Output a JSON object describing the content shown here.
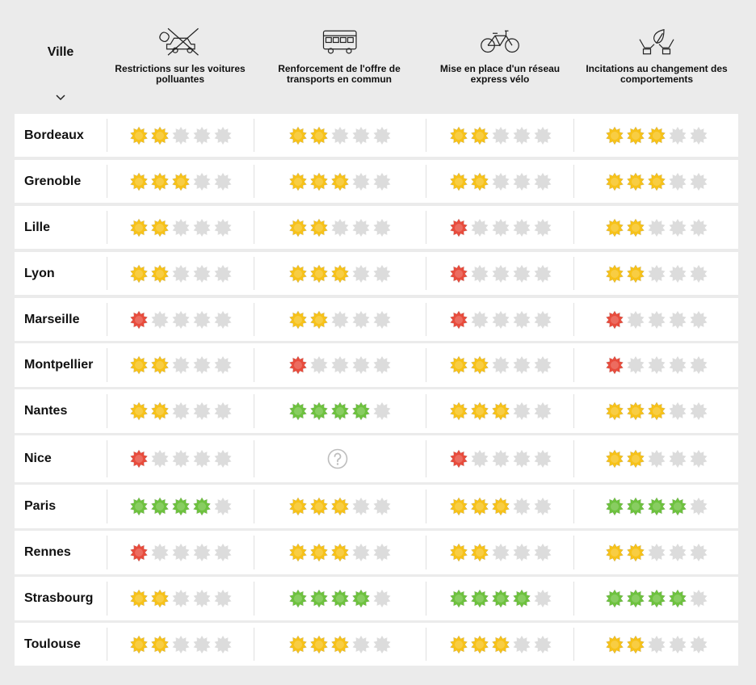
{
  "header": {
    "ville_label": "Ville",
    "sort_icon": "chevron-down-icon",
    "columns": [
      {
        "label": "Restrictions sur les voitures polluantes",
        "icon": "no-polluting-car-icon"
      },
      {
        "label": "Renforcement de l'offre de transports en commun",
        "icon": "bus-icon"
      },
      {
        "label": "Mise en place d'un réseau express vélo",
        "icon": "bicycle-icon"
      },
      {
        "label": "Incitations au changement des comportements",
        "icon": "hands-leaf-icon"
      }
    ]
  },
  "rating_max": 5,
  "level_colors": {
    "1": "#e84c3d",
    "2": "#f7c21a",
    "3": "#f7c21a",
    "4": "#6ec23f",
    "empty": "#dcdcdc"
  },
  "unknown_icon": "question-mark-icon",
  "rows": [
    {
      "city": "Bordeaux",
      "ratings": [
        2,
        2,
        2,
        3
      ]
    },
    {
      "city": "Grenoble",
      "ratings": [
        3,
        3,
        2,
        3
      ]
    },
    {
      "city": "Lille",
      "ratings": [
        2,
        2,
        1,
        2
      ]
    },
    {
      "city": "Lyon",
      "ratings": [
        2,
        3,
        1,
        2
      ]
    },
    {
      "city": "Marseille",
      "ratings": [
        1,
        2,
        1,
        1
      ]
    },
    {
      "city": "Montpellier",
      "ratings": [
        2,
        1,
        2,
        1
      ]
    },
    {
      "city": "Nantes",
      "ratings": [
        2,
        4,
        3,
        3
      ]
    },
    {
      "city": "Nice",
      "ratings": [
        1,
        null,
        1,
        2
      ]
    },
    {
      "city": "Paris",
      "ratings": [
        4,
        3,
        3,
        4
      ]
    },
    {
      "city": "Rennes",
      "ratings": [
        1,
        3,
        2,
        2
      ]
    },
    {
      "city": "Strasbourg",
      "ratings": [
        2,
        4,
        4,
        4
      ]
    },
    {
      "city": "Toulouse",
      "ratings": [
        2,
        3,
        3,
        2
      ]
    }
  ]
}
